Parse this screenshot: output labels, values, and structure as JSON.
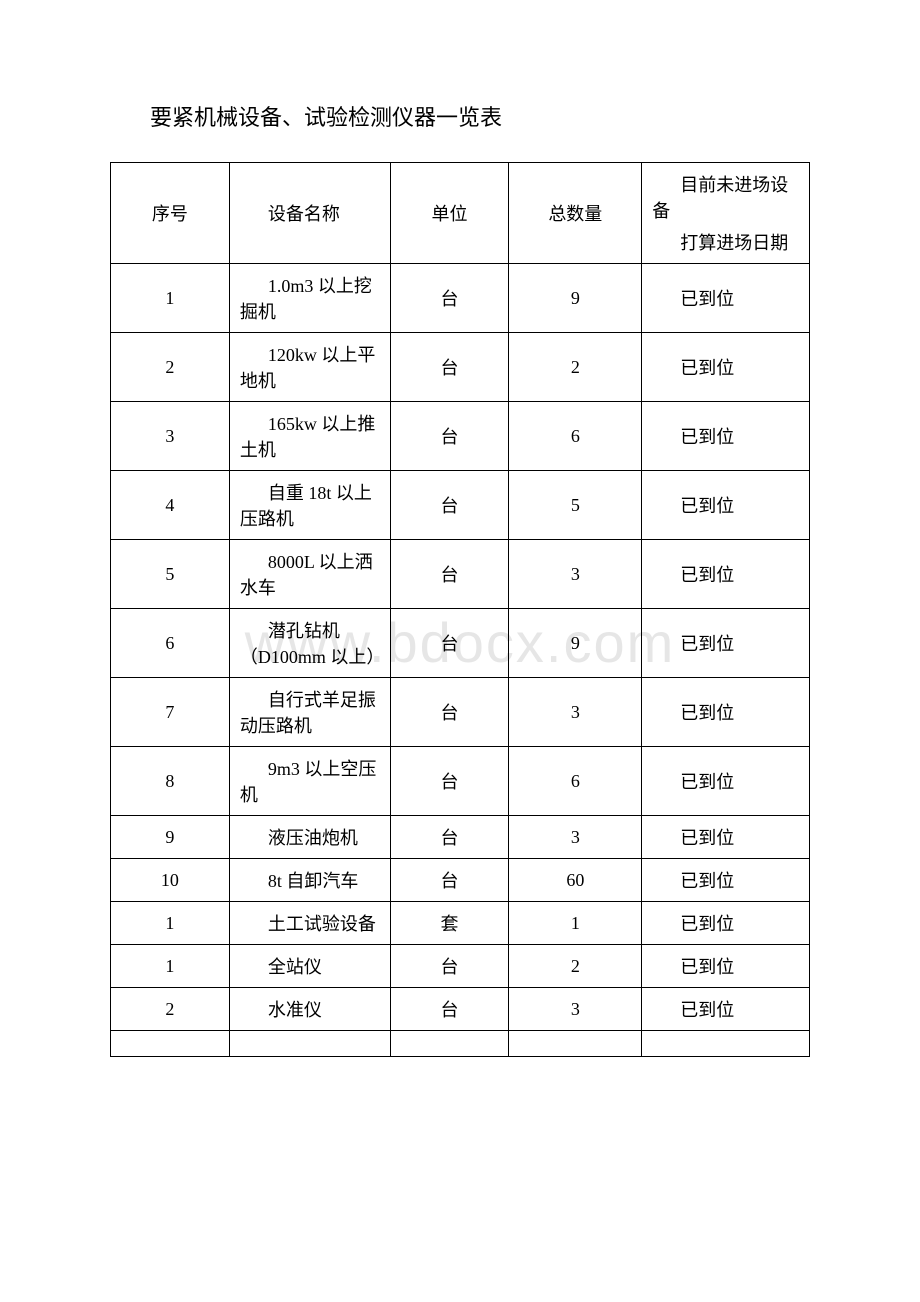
{
  "title": "要紧机械设备、试验检测仪器一览表",
  "watermark": "www.bdocx.com",
  "table": {
    "columns": [
      {
        "key": "seq",
        "label": "序号"
      },
      {
        "key": "name",
        "label": "设备名称"
      },
      {
        "key": "unit",
        "label": "单位"
      },
      {
        "key": "qty",
        "label": "总数量"
      },
      {
        "key": "status_top",
        "label": "目前未进场设备"
      },
      {
        "key": "status_bottom",
        "label": "打算进场日期"
      }
    ],
    "rows": [
      {
        "seq": "1",
        "name": "1.0m3 以上挖掘机",
        "unit": "台",
        "qty": "9",
        "status": "已到位"
      },
      {
        "seq": "2",
        "name": "120kw 以上平地机",
        "unit": "台",
        "qty": "2",
        "status": "已到位"
      },
      {
        "seq": "3",
        "name": "165kw 以上推土机",
        "unit": "台",
        "qty": "6",
        "status": "已到位"
      },
      {
        "seq": "4",
        "name": "自重 18t 以上压路机",
        "unit": "台",
        "qty": "5",
        "status": "已到位"
      },
      {
        "seq": "5",
        "name": "8000L 以上洒水车",
        "unit": "台",
        "qty": "3",
        "status": "已到位"
      },
      {
        "seq": "6",
        "name": "潜孔钻机（D100mm 以上）",
        "unit": "台",
        "qty": "9",
        "status": "已到位"
      },
      {
        "seq": "7",
        "name": "自行式羊足振动压路机",
        "unit": "台",
        "qty": "3",
        "status": "已到位"
      },
      {
        "seq": "8",
        "name": "9m3 以上空压机",
        "unit": "台",
        "qty": "6",
        "status": "已到位"
      },
      {
        "seq": "9",
        "name": "液压油炮机",
        "unit": "台",
        "qty": "3",
        "status": "已到位"
      },
      {
        "seq": "10",
        "name": "8t 自卸汽车",
        "unit": "台",
        "qty": "60",
        "status": "已到位"
      },
      {
        "seq": "1",
        "name": "土工试验设备",
        "unit": "套",
        "qty": "1",
        "status": "已到位"
      },
      {
        "seq": "1",
        "name": "全站仪",
        "unit": "台",
        "qty": "2",
        "status": "已到位"
      },
      {
        "seq": "2",
        "name": "水准仪",
        "unit": "台",
        "qty": "3",
        "status": "已到位"
      }
    ],
    "column_widths_pct": [
      17,
      23,
      17,
      19,
      24
    ],
    "border_color": "#000000",
    "text_color": "#000000",
    "background_color": "#ffffff",
    "font_size_pt": 14,
    "title_font_size_pt": 16
  }
}
